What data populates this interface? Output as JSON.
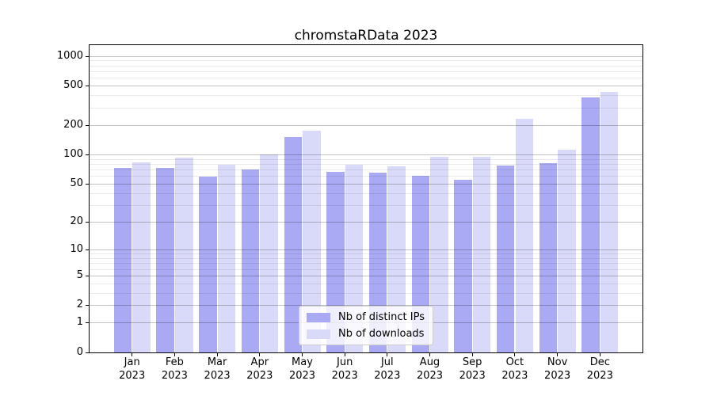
{
  "chart_data": {
    "type": "bar",
    "title": "chromstaRData 2023",
    "categories": [
      "Jan",
      "Feb",
      "Mar",
      "Apr",
      "May",
      "Jun",
      "Jul",
      "Aug",
      "Sep",
      "Oct",
      "Nov",
      "Dec"
    ],
    "year": "2023",
    "series": [
      {
        "name": "Nb of distinct IPs",
        "color": "#a9a9f4",
        "values": [
          73,
          73,
          59,
          70,
          150,
          66,
          65,
          60,
          55,
          77,
          82,
          380
        ]
      },
      {
        "name": "Nb of downloads",
        "color": "#d9d9f9",
        "values": [
          83,
          92,
          78,
          100,
          175,
          79,
          76,
          95,
          94,
          230,
          111,
          430
        ]
      }
    ],
    "xlabel": "",
    "ylabel": "",
    "yscale": "log1p",
    "ylim": [
      0,
      1000
    ],
    "y_major_ticks": [
      0,
      1,
      2,
      5,
      10,
      20,
      50,
      100,
      200,
      500,
      1000
    ],
    "y_minor_ticks": [
      3,
      4,
      6,
      7,
      8,
      9,
      30,
      40,
      60,
      70,
      80,
      90,
      300,
      400,
      600,
      700,
      800,
      900
    ],
    "grid": "horizontal-on",
    "legend_position": "lower-center",
    "frame_color": "#000000",
    "major_grid_color": "#c2c2c2",
    "minor_grid_color": "#ebebeb"
  }
}
